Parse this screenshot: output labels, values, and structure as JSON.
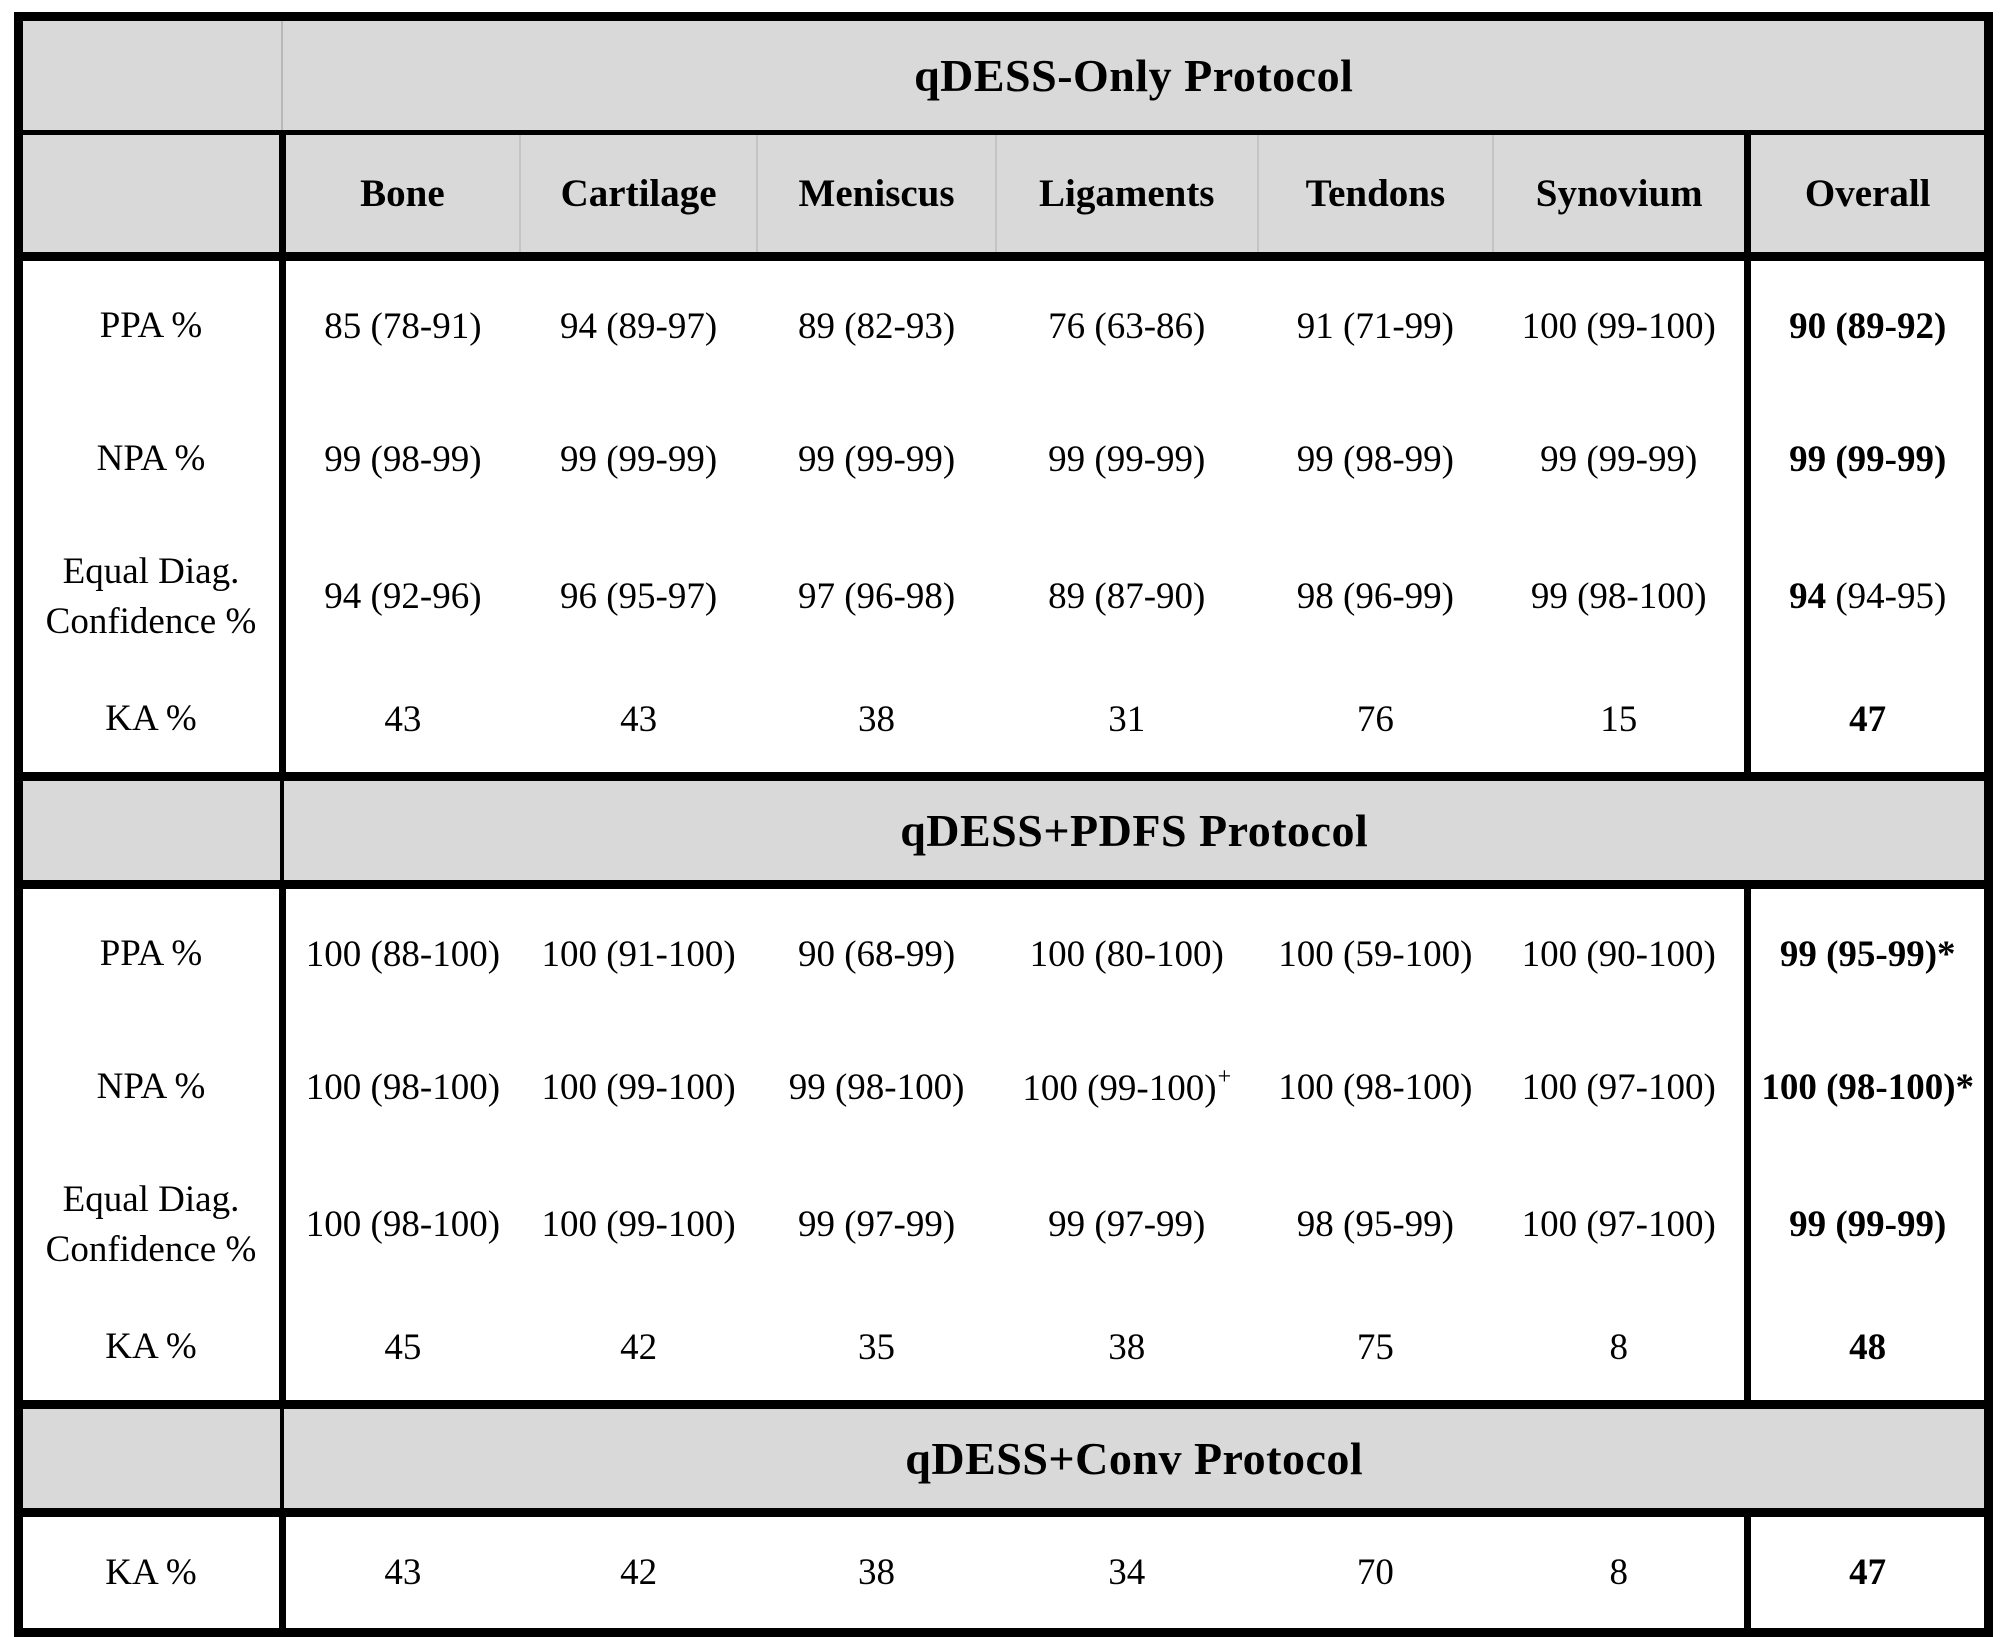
{
  "table": {
    "corner_label": "",
    "columns": [
      "Bone",
      "Cartilage",
      "Meniscus",
      "Ligaments",
      "Tendons",
      "Synovium",
      "Overall"
    ],
    "sections": [
      {
        "title": "qDESS-Only Protocol",
        "rows": [
          {
            "label": "PPA %",
            "cells": [
              "85 (78-91)",
              "94 (89-97)",
              "89 (82-93)",
              "76 (63-86)",
              "91 (71-99)",
              "100 (99-100)"
            ],
            "overall": {
              "bold": "90 (89-92)"
            }
          },
          {
            "label": "NPA %",
            "cells": [
              "99 (98-99)",
              "99 (99-99)",
              "99 (99-99)",
              "99 (99-99)",
              "99 (98-99)",
              "99 (99-99)"
            ],
            "overall": {
              "bold": "99 (99-99)"
            }
          },
          {
            "label": [
              "Equal Diag.",
              "Confidence %"
            ],
            "cells": [
              "94 (92-96)",
              "96 (95-97)",
              "97 (96-98)",
              "89 (87-90)",
              "98 (96-99)",
              "99 (98-100)"
            ],
            "overall": {
              "bold": "94",
              "normal": " (94-95)"
            }
          },
          {
            "label": "KA %",
            "cells": [
              "43",
              "43",
              "38",
              "31",
              "76",
              "15"
            ],
            "overall": {
              "bold": "47"
            }
          }
        ]
      },
      {
        "title": "qDESS+PDFS Protocol",
        "rows": [
          {
            "label": "PPA %",
            "cells": [
              "100 (88-100)",
              "100 (91-100)",
              "90 (68-99)",
              "100 (80-100)",
              "100 (59-100)",
              "100 (90-100)"
            ],
            "overall": {
              "bold": "99 (95-99)*"
            }
          },
          {
            "label": "NPA %",
            "cells": [
              "100 (98-100)",
              "100 (99-100)",
              "99 (98-100)",
              {
                "text": "100 (99-100)",
                "sup": "+"
              },
              "100 (98-100)",
              "100 (97-100)"
            ],
            "overall": {
              "bold": "100 (98-100)*"
            }
          },
          {
            "label": [
              "Equal Diag.",
              "Confidence %"
            ],
            "cells": [
              "100 (98-100)",
              "100 (99-100)",
              "99 (97-99)",
              "99 (97-99)",
              "98 (95-99)",
              "100 (97-100)"
            ],
            "overall": {
              "bold": "99 (99-99)"
            }
          },
          {
            "label": "KA %",
            "cells": [
              "45",
              "42",
              "35",
              "38",
              "75",
              "8"
            ],
            "overall": {
              "bold": "48"
            }
          }
        ]
      },
      {
        "title": "qDESS+Conv Protocol",
        "rows": [
          {
            "label": "KA %",
            "cells": [
              "43",
              "42",
              "38",
              "34",
              "70",
              "8"
            ],
            "overall": {
              "bold": "47"
            }
          }
        ]
      }
    ],
    "colors": {
      "band_bg": "#d9d9d9",
      "border": "#000000",
      "faint_line": "#c4c4c4"
    }
  }
}
